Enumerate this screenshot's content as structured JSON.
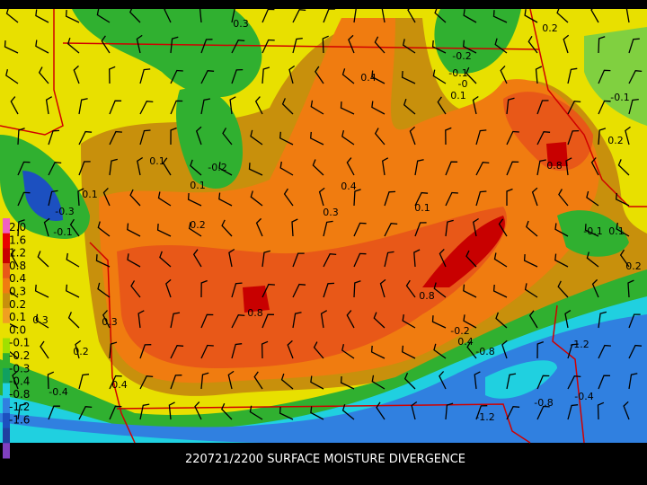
{
  "caption": "220721/2200 SURFACE MOISTURE DIVERGENCE",
  "legend": {
    "labels": [
      "2.0",
      "1.6",
      "1.2",
      "0.8",
      "0.4",
      "0.3",
      "0.2",
      "0.1",
      "0.0",
      "-0.1",
      "-0.2",
      "-0.3",
      "-0.4",
      "-0.8",
      "-1.2",
      "-1.6"
    ]
  },
  "contour_labels": [
    "0.3",
    "0.2",
    "0.4",
    "-0.2",
    "-0.1",
    "-0",
    "0.1",
    "-0.1",
    "0.2",
    "0.8",
    "0.1",
    "-0.2",
    "0.1",
    "0.4",
    "0.1",
    "0.3",
    "0.1",
    "-0.3",
    "-0.1",
    "0.2",
    "-0.1",
    "0.1",
    "0.2",
    "0.8",
    "0.8",
    "0.3",
    "0.3",
    "0.2",
    "-0.2",
    "0.4",
    "-0.8",
    "-1.2",
    "-0.4",
    "0.4",
    "-0.8",
    "-1.2",
    "-0.4"
  ]
}
